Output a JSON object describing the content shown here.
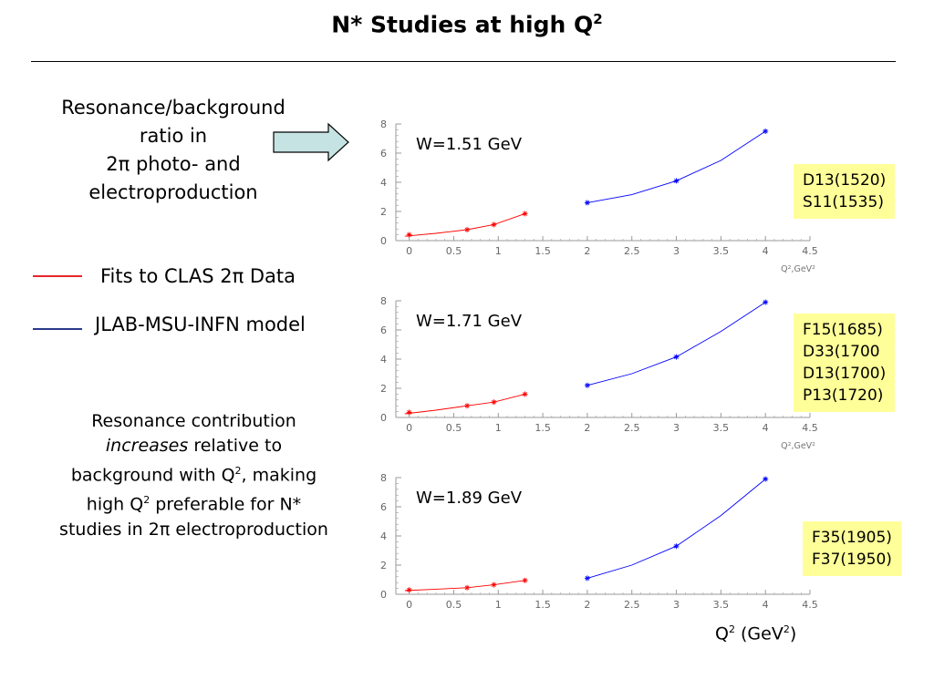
{
  "slide": {
    "title": "N* Studies at high Q",
    "title_sup": "2",
    "description": [
      "Resonance/background",
      "ratio in",
      "2π photo- and",
      "electroproduction"
    ],
    "legend": [
      {
        "label": "Fits to CLAS 2π Data",
        "color": "#e8262b"
      },
      {
        "label": "JLAB-MSU-INFN model",
        "color": "#2b3a8c"
      }
    ],
    "note": {
      "line1": "Resonance contribution",
      "line2_em": "increases",
      "line2_rest": " relative to",
      "line3a": "background with Q",
      "line3b": ", making",
      "line4a": "high Q",
      "line4b": " preferable for N*",
      "line5": "studies in 2π electroproduction",
      "sup": "2"
    },
    "x_axis_label": {
      "main": "Q",
      "sup": "2",
      "unit_a": " (GeV",
      "unit_b": ")"
    },
    "colors": {
      "accent_red": "#ff0000",
      "accent_blue": "#0000ff",
      "box_bg": "#ffff99",
      "arrow_fill": "#c6e3e3"
    }
  },
  "chart_data": [
    {
      "type": "scatter",
      "title": "W=1.51 GeV",
      "resonances": [
        "D13(1520)",
        "S11(1535)"
      ],
      "xlabel": "Q²,GeV²",
      "xlim": [
        -0.15,
        4.5
      ],
      "ylim": [
        0,
        8
      ],
      "x_ticks": [
        0,
        0.5,
        1,
        1.5,
        2,
        2.5,
        3,
        3.5,
        4,
        4.5
      ],
      "x_tick_labels": [
        "0",
        "0.5",
        "1",
        "1.5",
        "2",
        "2.5",
        "3",
        "3.5",
        "4",
        "4.5"
      ],
      "y_ticks": [
        0,
        2,
        4,
        6,
        8
      ],
      "y_tick_labels": [
        "0",
        "2",
        "4",
        "6",
        "8"
      ],
      "series": [
        {
          "color": "#ff0000",
          "x": [
            0,
            0.65,
            0.95,
            1.3
          ],
          "y": [
            0.4,
            0.75,
            1.1,
            1.85
          ],
          "curve_x": [
            -0.05,
            0.3,
            0.65,
            0.95,
            1.3
          ],
          "curve_y": [
            0.3,
            0.5,
            0.75,
            1.1,
            1.85
          ]
        },
        {
          "color": "#0000ff",
          "x": [
            2,
            3,
            4
          ],
          "y": [
            2.6,
            4.1,
            7.5
          ],
          "curve_x": [
            2,
            2.5,
            3,
            3.5,
            4
          ],
          "curve_y": [
            2.6,
            3.15,
            4.1,
            5.5,
            7.5
          ]
        }
      ]
    },
    {
      "type": "scatter",
      "title": "W=1.71 GeV",
      "resonances": [
        "F15(1685)",
        "D33(1700",
        "D13(1700)",
        "P13(1720)"
      ],
      "xlabel": "Q²,GeV²",
      "xlim": [
        -0.15,
        4.5
      ],
      "ylim": [
        0,
        8
      ],
      "x_ticks": [
        0,
        0.5,
        1,
        1.5,
        2,
        2.5,
        3,
        3.5,
        4,
        4.5
      ],
      "x_tick_labels": [
        "0",
        "0.5",
        "1",
        "1.5",
        "2",
        "2.5",
        "3",
        "3.5",
        "4",
        "4.5"
      ],
      "y_ticks": [
        0,
        2,
        4,
        6,
        8
      ],
      "y_tick_labels": [
        "0",
        "2",
        "4",
        "6",
        "8"
      ],
      "series": [
        {
          "color": "#ff0000",
          "x": [
            0,
            0.65,
            0.95,
            1.3
          ],
          "y": [
            0.35,
            0.8,
            1.05,
            1.6
          ],
          "curve_x": [
            -0.05,
            0.3,
            0.65,
            0.95,
            1.3
          ],
          "curve_y": [
            0.25,
            0.5,
            0.8,
            1.05,
            1.6
          ]
        },
        {
          "color": "#0000ff",
          "x": [
            2,
            3,
            4
          ],
          "y": [
            2.2,
            4.15,
            7.9
          ],
          "curve_x": [
            2,
            2.5,
            3,
            3.5,
            4
          ],
          "curve_y": [
            2.2,
            3.0,
            4.15,
            5.9,
            7.9
          ]
        }
      ]
    },
    {
      "type": "scatter",
      "title": "W=1.89 GeV",
      "resonances": [
        "F35(1905)",
        "F37(1950)"
      ],
      "xlabel": "",
      "xlim": [
        -0.15,
        4.5
      ],
      "ylim": [
        0,
        8
      ],
      "x_ticks": [
        0,
        0.5,
        1,
        1.5,
        2,
        2.5,
        3,
        3.5,
        4,
        4.5
      ],
      "x_tick_labels": [
        "0",
        "0.5",
        "1",
        "1.5",
        "2",
        "2.5",
        "3",
        "3.5",
        "4",
        "4.5"
      ],
      "y_ticks": [
        0,
        2,
        4,
        6,
        8
      ],
      "y_tick_labels": [
        "0",
        "2",
        "4",
        "6",
        "8"
      ],
      "series": [
        {
          "color": "#ff0000",
          "x": [
            0,
            0.65,
            0.95,
            1.3
          ],
          "y": [
            0.3,
            0.45,
            0.65,
            0.95
          ],
          "curve_x": [
            -0.05,
            0.3,
            0.65,
            0.95,
            1.3
          ],
          "curve_y": [
            0.25,
            0.35,
            0.45,
            0.65,
            0.95
          ]
        },
        {
          "color": "#0000ff",
          "x": [
            2,
            3,
            4
          ],
          "y": [
            1.1,
            3.3,
            7.9
          ],
          "curve_x": [
            2,
            2.5,
            3,
            3.5,
            4
          ],
          "curve_y": [
            1.1,
            2.0,
            3.3,
            5.4,
            7.9
          ]
        }
      ]
    }
  ]
}
